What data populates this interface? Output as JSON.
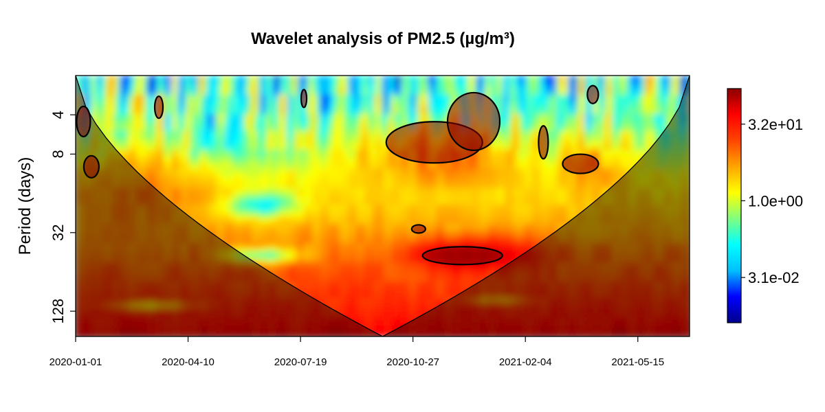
{
  "chart_data": {
    "type": "heatmap",
    "title": "Wavelet analysis of PM2.5 (µg/m³)",
    "xlabel": "",
    "ylabel": "Period (days)",
    "x_range": [
      "2020-01-01",
      "2021-06-30"
    ],
    "x_ticks": [
      "2020-01-01",
      "2020-04-10",
      "2020-07-19",
      "2020-10-27",
      "2021-02-04",
      "2021-05-15"
    ],
    "y_scale": "log2",
    "y_range": [
      2,
      200
    ],
    "y_reversed": true,
    "y_ticks": [
      4,
      8,
      32,
      128
    ],
    "y_tick_labels": [
      "4",
      "8",
      "32",
      "128"
    ],
    "colorbar": {
      "scale": "log",
      "range": [
        0.004,
        160
      ],
      "ticks": [
        0.031,
        1.0,
        32
      ],
      "tick_labels": [
        "3.1e-02",
        "1.0e+00",
        "3.2e+01"
      ],
      "colormap": [
        "#00008b",
        "#0000ff",
        "#00bfff",
        "#00ffff",
        "#7fff7f",
        "#ffff00",
        "#ffa500",
        "#ff4500",
        "#ff0000",
        "#8b0000"
      ]
    },
    "cone_of_influence": "shaded outside",
    "significance_contours": [
      {
        "center": [
          "2020-01-08",
          4.5
        ],
        "note": "high power"
      },
      {
        "center": [
          "2020-01-15",
          10
        ],
        "note": "high power"
      },
      {
        "center": [
          "2020-03-15",
          3.5
        ],
        "note": "high power"
      },
      {
        "center": [
          "2020-07-22",
          3.0
        ],
        "note": "high power"
      },
      {
        "center": [
          "2020-11-15",
          6.5
        ],
        "note": "high power"
      },
      {
        "center": [
          "2020-12-20",
          4.5
        ],
        "note": "high power"
      },
      {
        "center": [
          "2020-11-01",
          30
        ],
        "note": "high power"
      },
      {
        "center": [
          "2020-12-10",
          48
        ],
        "note": "high power"
      },
      {
        "center": [
          "2021-02-20",
          6.5
        ],
        "note": "high power"
      },
      {
        "center": [
          "2021-03-25",
          9.5
        ],
        "note": "high power"
      },
      {
        "center": [
          "2021-04-05",
          2.8
        ],
        "note": "high power"
      }
    ]
  }
}
